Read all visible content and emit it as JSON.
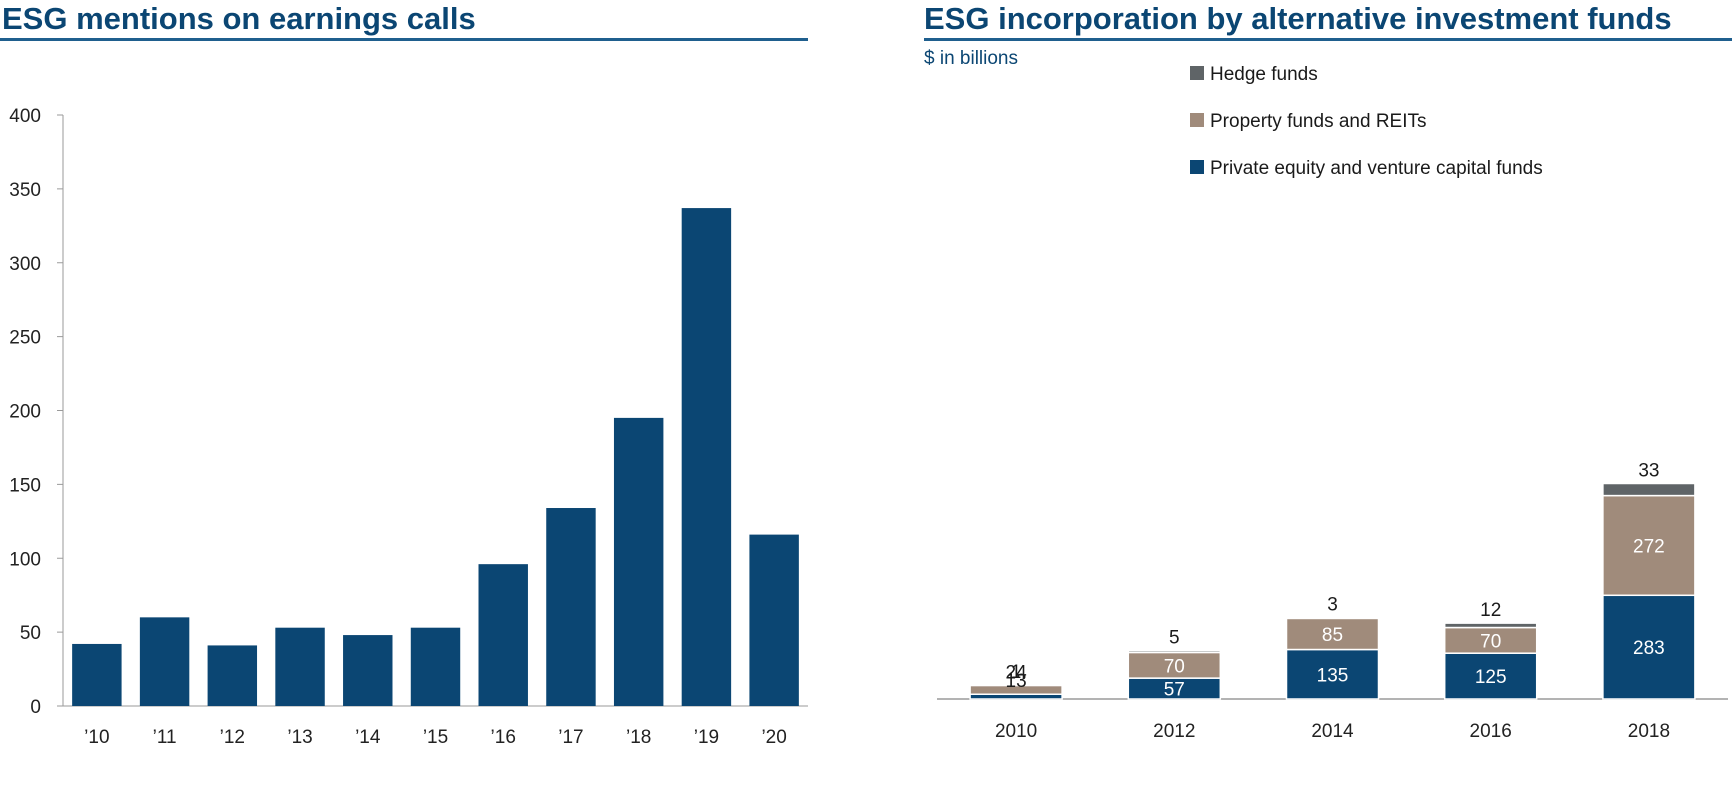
{
  "chart_data": [
    {
      "type": "bar",
      "title": "ESG mentions on earnings calls",
      "categories": [
        "’10",
        "’11",
        "’12",
        "’13",
        "’14",
        "’15",
        "’16",
        "’17",
        "’18",
        "’19",
        "’20"
      ],
      "values": [
        42,
        60,
        41,
        53,
        48,
        53,
        96,
        134,
        195,
        337,
        116
      ],
      "ylim": [
        0,
        400
      ],
      "yticks": [
        "0",
        "50",
        "100",
        "150",
        "200",
        "250",
        "300",
        "350",
        "400"
      ],
      "xlabel": "",
      "ylabel": "",
      "color": "#0b4673"
    },
    {
      "type": "bar",
      "stacked": true,
      "title": "ESG incorporation by alternative investment funds",
      "subtitle": "$ in billions",
      "categories": [
        "2010",
        "2012",
        "2014",
        "2016",
        "2018"
      ],
      "series": [
        {
          "name": "Private equity and venture capital funds",
          "color": "#0b4673",
          "values": [
            13,
            57,
            135,
            125,
            283
          ],
          "labels": [
            "13",
            "57",
            "135",
            "125",
            "283"
          ]
        },
        {
          "name": "Property funds and REITs",
          "color": "#a08b7b",
          "values": [
            24,
            70,
            85,
            70,
            272
          ],
          "labels": [
            "24",
            "70",
            "85",
            "70",
            "272"
          ]
        },
        {
          "name": "Hedge funds",
          "color": "#5f6467",
          "values": [
            1,
            5,
            3,
            12,
            33
          ],
          "labels": [
            "1",
            "5",
            "3",
            "12",
            "33"
          ]
        }
      ],
      "legend_order": [
        "Hedge funds",
        "Property funds and REITs",
        "Private equity and venture capital funds"
      ],
      "legend": "top-right"
    }
  ]
}
